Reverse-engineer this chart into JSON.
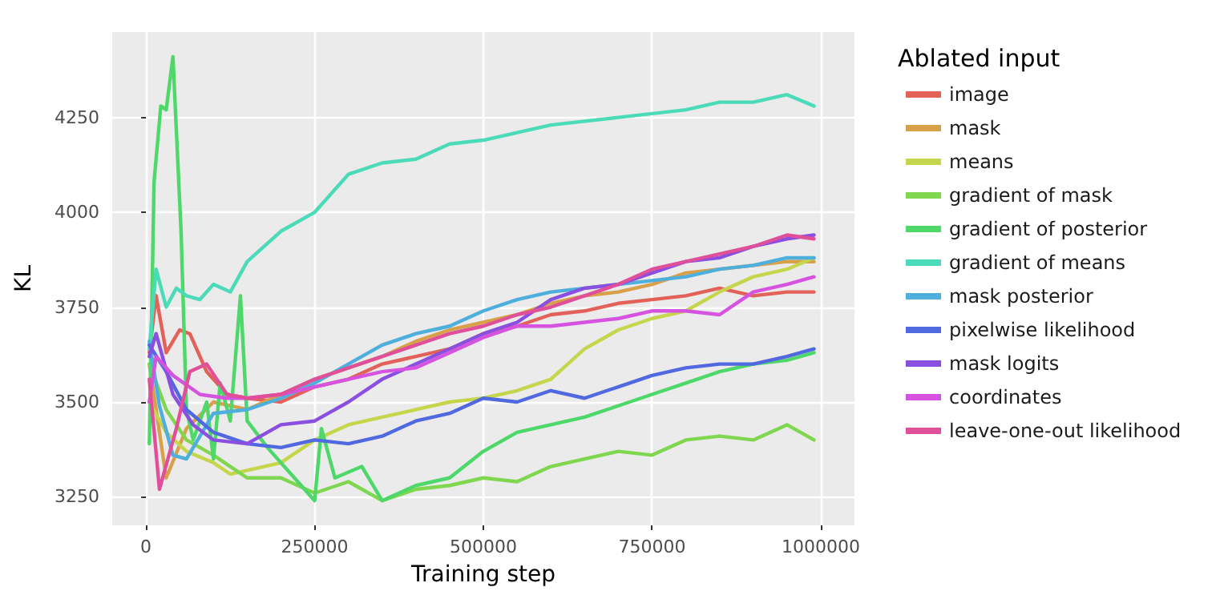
{
  "chart_data": {
    "type": "line",
    "xlabel": "Training step",
    "ylabel": "KL",
    "legend_title": "Ablated input",
    "legend": "right",
    "grid": true,
    "marker": "none",
    "line_style": "solid",
    "xlim": [
      -50000,
      1050000
    ],
    "xticks": [
      0,
      250000,
      500000,
      750000,
      1000000
    ],
    "ylim": [
      3175,
      4475
    ],
    "yticks": [
      3250,
      3500,
      3750,
      4000,
      4250
    ],
    "series": [
      {
        "name": "image",
        "color": "#e2625a",
        "x": [
          5000,
          15000,
          30000,
          50000,
          65000,
          90000,
          120000,
          150000,
          200000,
          250000,
          300000,
          350000,
          400000,
          450000,
          500000,
          550000,
          600000,
          650000,
          700000,
          750000,
          800000,
          850000,
          900000,
          950000,
          990000
        ],
        "values": [
          3630,
          3780,
          3630,
          3690,
          3680,
          3580,
          3520,
          3510,
          3500,
          3540,
          3560,
          3600,
          3620,
          3640,
          3680,
          3700,
          3730,
          3740,
          3760,
          3770,
          3780,
          3800,
          3780,
          3790,
          3790
        ]
      },
      {
        "name": "mask",
        "color": "#d9a04a",
        "x": [
          5000,
          30000,
          60000,
          100000,
          150000,
          200000,
          250000,
          300000,
          350000,
          400000,
          450000,
          500000,
          550000,
          600000,
          650000,
          700000,
          750000,
          800000,
          850000,
          900000,
          950000,
          990000
        ],
        "values": [
          3600,
          3300,
          3430,
          3500,
          3480,
          3520,
          3560,
          3590,
          3620,
          3660,
          3690,
          3710,
          3730,
          3760,
          3780,
          3790,
          3810,
          3840,
          3850,
          3860,
          3870,
          3870
        ]
      },
      {
        "name": "means",
        "color": "#c5d64d",
        "x": [
          5000,
          30000,
          60000,
          100000,
          125000,
          200000,
          250000,
          300000,
          350000,
          400000,
          450000,
          500000,
          550000,
          600000,
          650000,
          700000,
          750000,
          800000,
          850000,
          900000,
          950000,
          990000
        ],
        "values": [
          3500,
          3420,
          3370,
          3340,
          3310,
          3340,
          3400,
          3440,
          3460,
          3480,
          3500,
          3510,
          3530,
          3560,
          3640,
          3690,
          3720,
          3740,
          3790,
          3830,
          3850,
          3880
        ]
      },
      {
        "name": "gradient of mask",
        "color": "#7fd750",
        "x": [
          5000,
          30000,
          60000,
          100000,
          125000,
          150000,
          200000,
          250000,
          300000,
          350000,
          400000,
          450000,
          500000,
          550000,
          600000,
          650000,
          700000,
          750000,
          800000,
          850000,
          900000,
          950000,
          990000
        ],
        "values": [
          3600,
          3480,
          3400,
          3360,
          3330,
          3300,
          3300,
          3260,
          3290,
          3240,
          3270,
          3280,
          3300,
          3290,
          3330,
          3350,
          3370,
          3360,
          3400,
          3410,
          3400,
          3440,
          3400
        ]
      },
      {
        "name": "gradient of posterior",
        "color": "#4fd86a",
        "x": [
          5000,
          12000,
          22000,
          30000,
          40000,
          52000,
          60000,
          70000,
          90000,
          100000,
          110000,
          125000,
          140000,
          150000,
          180000,
          220000,
          250000,
          260000,
          280000,
          320000,
          350000,
          400000,
          450000,
          500000,
          550000,
          600000,
          650000,
          700000,
          750000,
          800000,
          850000,
          900000,
          950000,
          990000
        ],
        "values": [
          3390,
          4080,
          4280,
          4270,
          4410,
          3950,
          3480,
          3400,
          3500,
          3350,
          3550,
          3450,
          3780,
          3450,
          3380,
          3300,
          3240,
          3430,
          3300,
          3330,
          3240,
          3280,
          3300,
          3370,
          3420,
          3440,
          3460,
          3490,
          3520,
          3550,
          3580,
          3600,
          3610,
          3630
        ]
      },
      {
        "name": "gradient of means",
        "color": "#4cdbb8",
        "x": [
          5000,
          15000,
          30000,
          45000,
          60000,
          80000,
          100000,
          125000,
          150000,
          200000,
          250000,
          300000,
          350000,
          400000,
          450000,
          500000,
          550000,
          600000,
          650000,
          700000,
          750000,
          800000,
          850000,
          900000,
          950000,
          990000
        ],
        "values": [
          3640,
          3850,
          3750,
          3800,
          3780,
          3770,
          3810,
          3790,
          3870,
          3950,
          4000,
          4100,
          4130,
          4140,
          4180,
          4190,
          4210,
          4230,
          4240,
          4250,
          4260,
          4270,
          4290,
          4290,
          4310,
          4280
        ]
      },
      {
        "name": "mask posterior",
        "color": "#4eaedc",
        "x": [
          5000,
          20000,
          40000,
          60000,
          100000,
          150000,
          200000,
          250000,
          300000,
          350000,
          400000,
          450000,
          500000,
          550000,
          600000,
          650000,
          700000,
          750000,
          800000,
          850000,
          900000,
          950000,
          990000
        ],
        "values": [
          3660,
          3490,
          3360,
          3350,
          3470,
          3480,
          3510,
          3550,
          3600,
          3650,
          3680,
          3700,
          3740,
          3770,
          3790,
          3800,
          3810,
          3820,
          3830,
          3850,
          3860,
          3880,
          3880
        ]
      },
      {
        "name": "pixelwise likelihood",
        "color": "#5068e0",
        "x": [
          5000,
          30000,
          60000,
          100000,
          150000,
          200000,
          250000,
          300000,
          350000,
          400000,
          450000,
          500000,
          550000,
          600000,
          650000,
          700000,
          750000,
          800000,
          850000,
          900000,
          950000,
          990000
        ],
        "values": [
          3650,
          3580,
          3480,
          3420,
          3390,
          3380,
          3400,
          3390,
          3410,
          3450,
          3470,
          3510,
          3500,
          3530,
          3510,
          3540,
          3570,
          3590,
          3600,
          3600,
          3620,
          3640
        ]
      },
      {
        "name": "mask logits",
        "color": "#8a4fe0",
        "x": [
          5000,
          15000,
          40000,
          70000,
          100000,
          150000,
          200000,
          250000,
          300000,
          350000,
          400000,
          450000,
          500000,
          550000,
          600000,
          650000,
          700000,
          750000,
          800000,
          850000,
          900000,
          950000,
          990000
        ],
        "values": [
          3620,
          3680,
          3520,
          3440,
          3400,
          3390,
          3440,
          3450,
          3500,
          3560,
          3600,
          3640,
          3680,
          3710,
          3770,
          3800,
          3810,
          3840,
          3870,
          3880,
          3910,
          3930,
          3940
        ]
      },
      {
        "name": "coordinates",
        "color": "#d653e0",
        "x": [
          5000,
          15000,
          40000,
          80000,
          120000,
          150000,
          200000,
          250000,
          300000,
          350000,
          400000,
          450000,
          500000,
          550000,
          600000,
          650000,
          700000,
          750000,
          800000,
          850000,
          900000,
          950000,
          990000
        ],
        "values": [
          3500,
          3620,
          3570,
          3520,
          3510,
          3510,
          3520,
          3540,
          3560,
          3580,
          3590,
          3630,
          3670,
          3700,
          3700,
          3710,
          3720,
          3740,
          3740,
          3730,
          3790,
          3810,
          3830
        ]
      },
      {
        "name": "leave-one-out likelihood",
        "color": "#e0509a",
        "x": [
          5000,
          20000,
          45000,
          65000,
          90000,
          120000,
          150000,
          200000,
          250000,
          300000,
          350000,
          400000,
          450000,
          500000,
          550000,
          600000,
          650000,
          700000,
          750000,
          800000,
          850000,
          900000,
          950000,
          990000
        ],
        "values": [
          3560,
          3270,
          3430,
          3580,
          3600,
          3520,
          3510,
          3520,
          3560,
          3590,
          3620,
          3650,
          3680,
          3700,
          3730,
          3750,
          3780,
          3810,
          3850,
          3870,
          3890,
          3910,
          3940,
          3930
        ]
      }
    ]
  }
}
